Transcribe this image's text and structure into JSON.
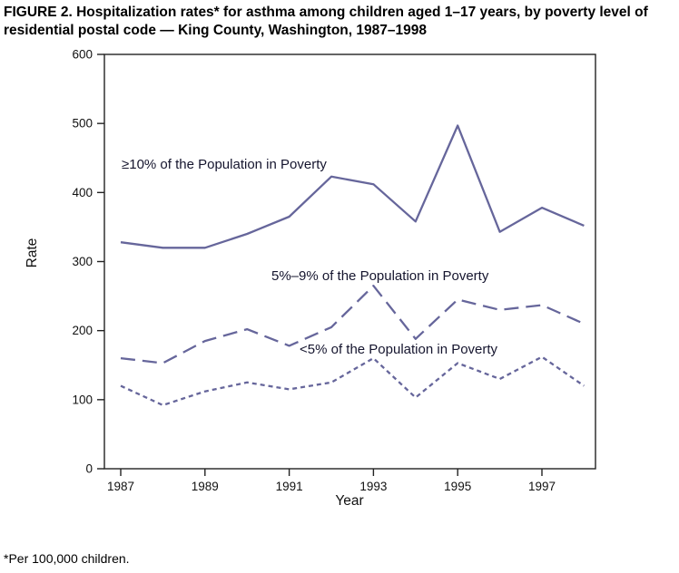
{
  "figure": {
    "title": "FIGURE 2. Hospitalization rates* for asthma among children aged 1–17 years, by poverty level of residential postal code — King County, Washington, 1987–1998",
    "footnote": "*Per 100,000 children."
  },
  "chart_data": {
    "type": "line",
    "title": "Hospitalization rates for asthma among children aged 1–17 years, by poverty level of residential postal code — King County, Washington, 1987–1998",
    "xlabel": "Year",
    "ylabel": "Rate",
    "x": [
      1987,
      1988,
      1989,
      1990,
      1991,
      1992,
      1993,
      1994,
      1995,
      1996,
      1997,
      1998
    ],
    "x_tick_labels": [
      "1987",
      "1989",
      "1991",
      "1993",
      "1995",
      "1997"
    ],
    "ylim": [
      0,
      600
    ],
    "yticks": [
      0,
      100,
      200,
      300,
      400,
      500,
      600
    ],
    "grid": false,
    "legend_position": "inline-annotations",
    "line_color": "#66669b",
    "axis_color": "#222222",
    "series": [
      {
        "name": "≥10% of the Population in Poverty",
        "dash": "solid",
        "values": [
          328,
          320,
          320,
          340,
          365,
          423,
          412,
          358,
          497,
          343,
          378,
          352
        ]
      },
      {
        "name": "5%–9% of the Population in Poverty",
        "dash": "long-dash",
        "values": [
          160,
          153,
          185,
          202,
          178,
          205,
          265,
          188,
          245,
          230,
          237,
          210
        ]
      },
      {
        "name": "<5% of the Population in Poverty",
        "dash": "short-dash",
        "values": [
          120,
          92,
          112,
          125,
          115,
          125,
          160,
          103,
          153,
          130,
          162,
          120
        ]
      }
    ]
  }
}
